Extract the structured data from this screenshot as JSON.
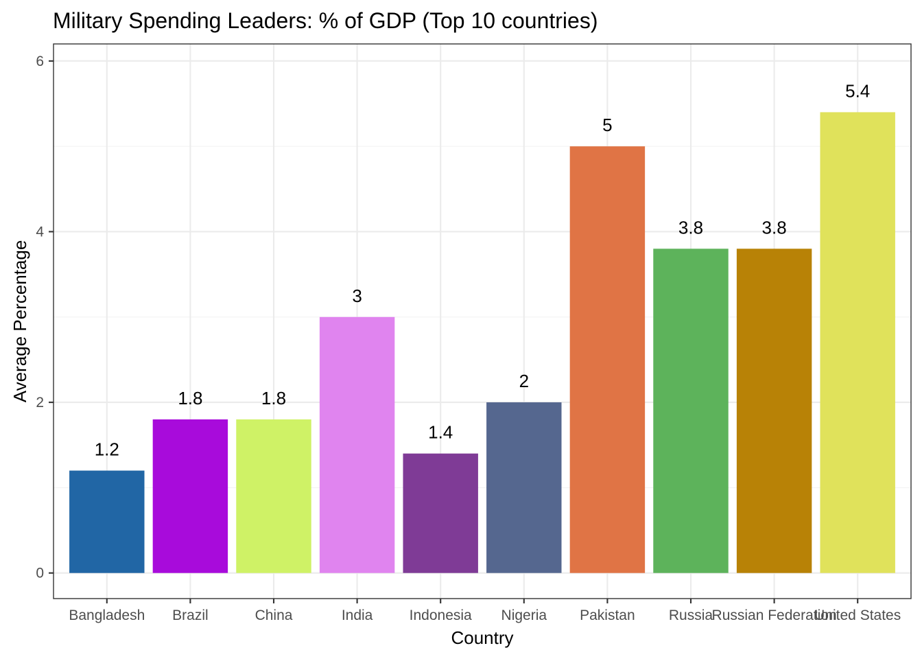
{
  "chart_data": {
    "type": "bar",
    "title": "Military Spending Leaders: % of GDP (Top 10 countries)",
    "xlabel": "Country",
    "ylabel": "Average Percentage",
    "categories": [
      "Bangladesh",
      "Brazil",
      "China",
      "India",
      "Indonesia",
      "Nigeria",
      "Pakistan",
      "Russia",
      "Russian Federation",
      "United States"
    ],
    "values": [
      1.2,
      1.8,
      1.8,
      3,
      1.4,
      2,
      5,
      3.8,
      3.8,
      5.4
    ],
    "data_labels": [
      "1.2",
      "1.8",
      "1.8",
      "3",
      "1.4",
      "2",
      "5",
      "3.8",
      "3.8",
      "5.4"
    ],
    "colors": [
      "#2166a5",
      "#a80bdb",
      "#cff266",
      "#e084ef",
      "#7f3b96",
      "#55678f",
      "#e07445",
      "#5db35b",
      "#b88206",
      "#e0e25b"
    ],
    "yticks": [
      0,
      2,
      4,
      6
    ],
    "ytick_labels": [
      "0",
      "2",
      "4",
      "6"
    ],
    "ylim": [
      -0.3,
      6.2
    ],
    "grid": true,
    "legend": "none"
  }
}
